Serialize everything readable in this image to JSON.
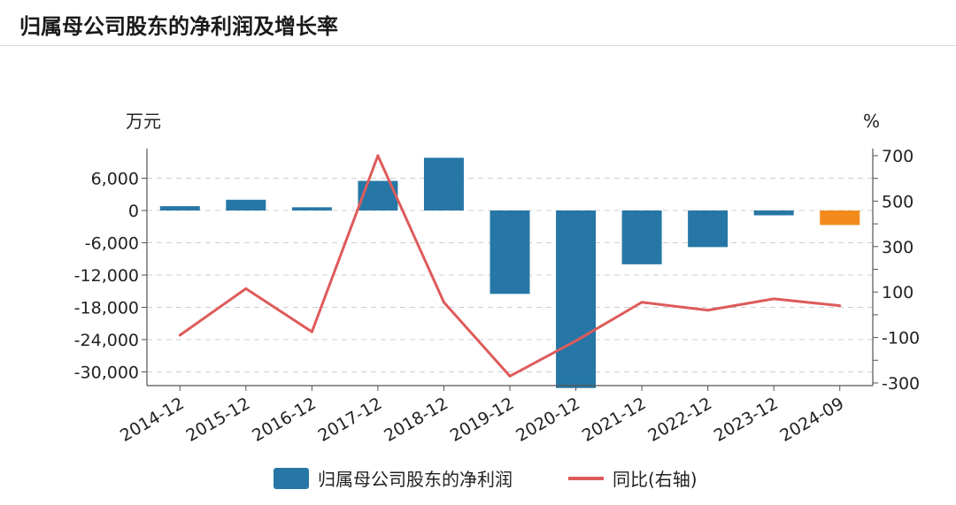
{
  "header": {
    "title": "归属母公司股东的净利润及增长率"
  },
  "chart_data": {
    "type": "bar",
    "categories": [
      "2014-12",
      "2015-12",
      "2016-12",
      "2017-12",
      "2018-12",
      "2019-12",
      "2020-12",
      "2021-12",
      "2022-12",
      "2023-12",
      "2024-09"
    ],
    "left_unit": "万元",
    "right_unit": "%",
    "y_left": {
      "ticks": [
        6000,
        0,
        -6000,
        -12000,
        -18000,
        -24000,
        -30000
      ],
      "tick_labels": [
        "6,000",
        "0",
        "-6,000",
        "-12,000",
        "-18,000",
        "-24,000",
        "-30,000"
      ],
      "range": [
        -33000,
        10500
      ]
    },
    "y_right": {
      "ticks": [
        700,
        500,
        300,
        100,
        -100,
        -300
      ],
      "tick_labels": [
        "700",
        "500",
        "300",
        "100",
        "-100",
        "-300"
      ],
      "range": [
        -300,
        730
      ]
    },
    "series": [
      {
        "name": "归属母公司股东的净利润",
        "type": "bar",
        "axis": "left",
        "color": "#2677a6",
        "highlight_color": "#f28b1c",
        "highlight_index": 10,
        "values": [
          800,
          2000,
          600,
          5500,
          9800,
          -15500,
          -33000,
          -10000,
          -6800,
          -900,
          -2700
        ]
      },
      {
        "name": "同比(右轴)",
        "type": "line",
        "axis": "right",
        "color": "#de5b5b",
        "values": [
          -90,
          115,
          -75,
          700,
          55,
          -270,
          -115,
          55,
          20,
          70,
          40
        ]
      }
    ],
    "grid": true,
    "legend": "bottom"
  }
}
